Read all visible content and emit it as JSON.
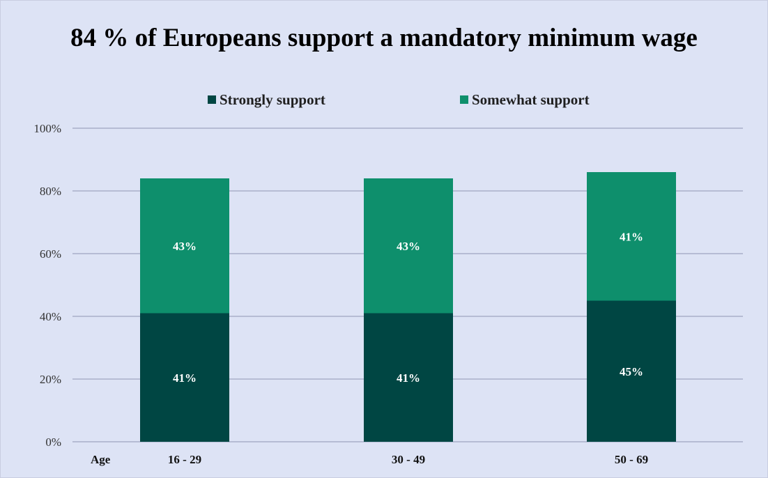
{
  "chart_data": {
    "type": "bar",
    "stacked": true,
    "title": "84 % of Europeans support a mandatory minimum wage",
    "xlabel": "Age",
    "ylabel": "",
    "categories": [
      "16 - 29",
      "30 - 49",
      "50 - 69"
    ],
    "series": [
      {
        "name": "Strongly support",
        "values": [
          41,
          41,
          45
        ],
        "labels": [
          "41%",
          "41%",
          "45%"
        ],
        "color": "#004643"
      },
      {
        "name": "Somewhat support",
        "values": [
          43,
          43,
          41
        ],
        "labels": [
          "43%",
          "43%",
          "41%"
        ],
        "color": "#0e8f6c"
      }
    ],
    "ylim": [
      0,
      100
    ],
    "yticks": [
      0,
      20,
      40,
      60,
      80,
      100
    ],
    "ytick_labels": [
      "0%",
      "20%",
      "40%",
      "60%",
      "80%",
      "100%"
    ],
    "grid": true,
    "legend_position": "top-center",
    "colors": {
      "background": "#dde3f5",
      "gridline": "#8f96b4",
      "axis_text": "#333333",
      "data_label": "#ffffff"
    }
  }
}
